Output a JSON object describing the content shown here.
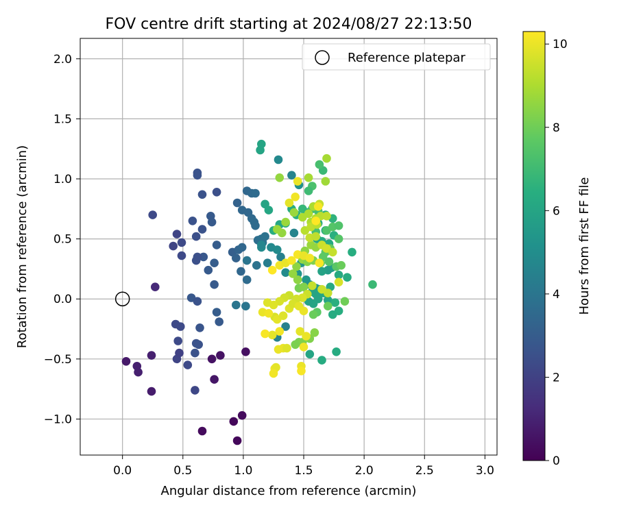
{
  "chart_data": {
    "type": "scatter",
    "title": "FOV centre drift starting at 2024/08/27 22:13:50",
    "xlabel": "Angular distance from reference (arcmin)",
    "ylabel": "Rotation from reference (arcmin)",
    "xlim": [
      -0.35,
      3.1
    ],
    "ylim": [
      -1.3,
      2.17
    ],
    "xticks": [
      0.0,
      0.5,
      1.0,
      1.5,
      2.0,
      2.5,
      3.0
    ],
    "yticks": [
      -1.0,
      -0.5,
      0.0,
      0.5,
      1.0,
      1.5,
      2.0
    ],
    "grid": true,
    "legend": {
      "placement": "top-right",
      "entries": [
        "Reference platepar"
      ]
    },
    "reference_point": {
      "label": "Reference platepar",
      "x": 0.0,
      "y": 0.0
    },
    "colorbar": {
      "label": "Hours from first FF file",
      "colormap": "viridis",
      "range": [
        0,
        10.3
      ],
      "ticks": [
        0,
        2,
        4,
        6,
        8,
        10
      ]
    },
    "points": [
      [
        0.66,
        -1.1,
        0.3
      ],
      [
        0.95,
        -1.18,
        0.2
      ],
      [
        0.92,
        -1.02,
        0.2
      ],
      [
        0.99,
        -0.97,
        0.3
      ],
      [
        0.24,
        -0.77,
        0.8
      ],
      [
        0.76,
        -0.67,
        0.6
      ],
      [
        0.03,
        -0.52,
        0.7
      ],
      [
        0.13,
        -0.61,
        0.9
      ],
      [
        0.12,
        -0.56,
        0.9
      ],
      [
        0.24,
        -0.47,
        0.9
      ],
      [
        0.74,
        -0.5,
        0.5
      ],
      [
        0.81,
        -0.47,
        0.5
      ],
      [
        1.02,
        -0.44,
        0.4
      ],
      [
        0.27,
        0.1,
        1.2
      ],
      [
        0.25,
        0.7,
        2.3
      ],
      [
        0.6,
        -0.76,
        2.2
      ],
      [
        0.54,
        -0.55,
        2.3
      ],
      [
        0.45,
        -0.5,
        2.1
      ],
      [
        0.47,
        -0.45,
        2.0
      ],
      [
        0.6,
        -0.45,
        2.6
      ],
      [
        0.61,
        -0.37,
        2.6
      ],
      [
        0.63,
        -0.38,
        2.6
      ],
      [
        0.46,
        -0.35,
        2.3
      ],
      [
        0.44,
        -0.21,
        2.3
      ],
      [
        0.48,
        -0.23,
        2.3
      ],
      [
        0.64,
        -0.24,
        2.7
      ],
      [
        0.57,
        0.01,
        2.8
      ],
      [
        0.62,
        -0.02,
        2.6
      ],
      [
        0.8,
        -0.19,
        2.9
      ],
      [
        0.78,
        -0.11,
        3.0
      ],
      [
        0.76,
        0.12,
        2.9
      ],
      [
        0.71,
        0.24,
        2.9
      ],
      [
        0.67,
        0.35,
        2.8
      ],
      [
        0.61,
        0.32,
        2.5
      ],
      [
        0.62,
        0.35,
        2.5
      ],
      [
        0.76,
        0.3,
        3.0
      ],
      [
        0.78,
        0.45,
        3.0
      ],
      [
        0.42,
        0.44,
        2.1
      ],
      [
        0.49,
        0.47,
        2.3
      ],
      [
        0.45,
        0.54,
        2.1
      ],
      [
        0.49,
        0.36,
        2.3
      ],
      [
        0.61,
        0.52,
        2.5
      ],
      [
        0.66,
        0.58,
        2.6
      ],
      [
        0.58,
        0.65,
        2.6
      ],
      [
        0.73,
        0.69,
        2.9
      ],
      [
        0.74,
        0.64,
        2.9
      ],
      [
        0.66,
        0.87,
        2.6
      ],
      [
        0.78,
        0.89,
        2.5
      ],
      [
        0.62,
        1.03,
        2.6
      ],
      [
        0.62,
        1.05,
        2.6
      ],
      [
        0.91,
        0.39,
        3.1
      ],
      [
        0.94,
        0.34,
        3.2
      ],
      [
        0.96,
        0.41,
        3.3
      ],
      [
        0.99,
        0.43,
        3.4
      ],
      [
        0.98,
        0.23,
        3.4
      ],
      [
        1.03,
        0.16,
        3.6
      ],
      [
        0.95,
        0.8,
        3.2
      ],
      [
        0.99,
        0.74,
        3.4
      ],
      [
        1.04,
        0.72,
        3.4
      ],
      [
        1.07,
        0.67,
        3.5
      ],
      [
        1.03,
        0.9,
        3.4
      ],
      [
        1.07,
        0.88,
        3.5
      ],
      [
        1.1,
        0.88,
        3.6
      ],
      [
        1.09,
        0.64,
        3.6
      ],
      [
        1.1,
        0.61,
        3.6
      ],
      [
        1.12,
        0.49,
        3.7
      ],
      [
        1.15,
        0.5,
        3.8
      ],
      [
        1.18,
        0.52,
        3.9
      ],
      [
        1.11,
        0.28,
        3.9
      ],
      [
        1.16,
        0.47,
        3.9
      ],
      [
        1.02,
        -0.06,
        4.0
      ],
      [
        0.94,
        -0.05,
        4.0
      ],
      [
        1.03,
        0.32,
        4.0
      ],
      [
        1.2,
        0.3,
        4.3
      ],
      [
        1.28,
        -0.32,
        4.5
      ],
      [
        1.31,
        0.35,
        4.4
      ],
      [
        1.35,
        -0.23,
        4.5
      ],
      [
        1.42,
        0.55,
        4.6
      ],
      [
        1.4,
        1.03,
        4.6
      ],
      [
        1.29,
        1.16,
        4.8
      ],
      [
        1.23,
        0.43,
        4.8
      ],
      [
        1.35,
        0.22,
        4.9
      ],
      [
        1.28,
        0.41,
        4.9
      ],
      [
        1.15,
        0.43,
        4.9
      ],
      [
        1.15,
        0.45,
        4.7
      ],
      [
        1.46,
        0.95,
        5.1
      ],
      [
        1.48,
        0.3,
        5.3
      ],
      [
        1.45,
        0.21,
        5.3
      ],
      [
        1.52,
        0.16,
        5.4
      ],
      [
        1.55,
        0.12,
        5.3
      ],
      [
        1.6,
        0.09,
        5.5
      ],
      [
        1.63,
        0.08,
        5.6
      ],
      [
        1.66,
        0.05,
        5.6
      ],
      [
        1.7,
        0.24,
        5.7
      ],
      [
        1.73,
        0.26,
        5.7
      ],
      [
        1.55,
        -0.46,
        6.0
      ],
      [
        1.65,
        -0.51,
        6.3
      ],
      [
        1.77,
        -0.44,
        6.3
      ],
      [
        1.79,
        -0.1,
        6.4
      ],
      [
        1.7,
        -0.01,
        6.0
      ],
      [
        1.74,
        -0.13,
        6.3
      ],
      [
        1.76,
        -0.03,
        6.5
      ],
      [
        1.67,
        0.05,
        6.1
      ],
      [
        1.72,
        0.1,
        6.2
      ],
      [
        1.6,
        0.04,
        6.0
      ],
      [
        1.62,
        0.0,
        6.0
      ],
      [
        1.58,
        -0.04,
        6.0
      ],
      [
        1.54,
        -0.02,
        5.9
      ],
      [
        1.57,
        0.06,
        6.0
      ],
      [
        1.65,
        0.23,
        5.9
      ],
      [
        1.79,
        0.2,
        6.2
      ],
      [
        1.86,
        0.18,
        6.3
      ],
      [
        1.9,
        0.39,
        6.4
      ],
      [
        2.07,
        0.12,
        6.9
      ],
      [
        1.61,
        0.5,
        6.1
      ],
      [
        1.65,
        0.48,
        6.2
      ],
      [
        1.71,
        0.46,
        6.2
      ],
      [
        1.75,
        0.53,
        6.5
      ],
      [
        1.68,
        0.57,
        6.3
      ],
      [
        1.62,
        0.63,
        6.2
      ],
      [
        1.68,
        0.7,
        6.5
      ],
      [
        1.74,
        0.67,
        6.6
      ],
      [
        1.18,
        0.79,
        6.0
      ],
      [
        1.21,
        0.74,
        6.1
      ],
      [
        1.14,
        1.24,
        6.0
      ],
      [
        1.15,
        1.29,
        6.0
      ],
      [
        1.25,
        0.57,
        6.4
      ],
      [
        1.3,
        0.62,
        6.1
      ],
      [
        1.35,
        0.63,
        6.2
      ],
      [
        1.4,
        0.75,
        6.3
      ],
      [
        1.44,
        0.7,
        6.5
      ],
      [
        1.49,
        0.75,
        6.8
      ],
      [
        1.53,
        0.72,
        6.7
      ],
      [
        1.57,
        0.75,
        7.0
      ],
      [
        1.62,
        0.73,
        7.2
      ],
      [
        1.66,
        1.07,
        6.9
      ],
      [
        1.63,
        1.12,
        7.2
      ],
      [
        1.57,
        0.94,
        7.3
      ],
      [
        1.54,
        0.9,
        7.0
      ],
      [
        1.6,
        0.56,
        7.2
      ],
      [
        1.69,
        0.57,
        7.4
      ],
      [
        1.74,
        0.6,
        7.5
      ],
      [
        1.79,
        0.61,
        7.4
      ],
      [
        1.79,
        0.5,
        7.5
      ],
      [
        1.72,
        0.42,
        7.8
      ],
      [
        1.68,
        0.39,
        7.6
      ],
      [
        1.66,
        0.35,
        7.7
      ],
      [
        1.64,
        0.3,
        7.8
      ],
      [
        1.71,
        0.31,
        7.5
      ],
      [
        1.77,
        0.27,
        7.6
      ],
      [
        1.81,
        0.28,
        7.9
      ],
      [
        1.84,
        -0.02,
        8.0
      ],
      [
        1.7,
        -0.06,
        7.9
      ],
      [
        1.61,
        -0.11,
        7.7
      ],
      [
        1.58,
        -0.13,
        7.9
      ],
      [
        1.46,
        -0.36,
        8.2
      ],
      [
        1.49,
        -0.36,
        8.3
      ],
      [
        1.43,
        -0.38,
        8.2
      ],
      [
        1.55,
        -0.33,
        8.3
      ],
      [
        1.59,
        -0.28,
        8.4
      ],
      [
        1.46,
        0.09,
        8.1
      ],
      [
        1.5,
        0.1,
        8.3
      ],
      [
        1.45,
        0.16,
        8.5
      ],
      [
        1.41,
        0.21,
        8.6
      ],
      [
        1.44,
        0.27,
        8.5
      ],
      [
        1.49,
        0.33,
        8.6
      ],
      [
        1.53,
        0.31,
        8.4
      ],
      [
        1.58,
        0.32,
        8.3
      ],
      [
        1.51,
        0.4,
        8.5
      ],
      [
        1.56,
        0.45,
        8.7
      ],
      [
        1.6,
        0.43,
        8.6
      ],
      [
        1.42,
        0.72,
        8.7
      ],
      [
        1.35,
        0.64,
        8.7
      ],
      [
        1.32,
        0.55,
        8.6
      ],
      [
        1.28,
        0.58,
        8.7
      ],
      [
        1.3,
        1.01,
        8.6
      ],
      [
        1.54,
        1.01,
        8.9
      ],
      [
        1.69,
        1.17,
        8.9
      ],
      [
        1.68,
        0.98,
        8.8
      ],
      [
        1.56,
        0.64,
        9.0
      ],
      [
        1.6,
        0.67,
        9.1
      ],
      [
        1.64,
        0.69,
        9.2
      ],
      [
        1.69,
        0.69,
        9.3
      ],
      [
        1.49,
        0.68,
        9.0
      ],
      [
        1.54,
        0.71,
        9.0
      ],
      [
        1.58,
        0.77,
        9.0
      ],
      [
        1.63,
        0.79,
        9.4
      ],
      [
        1.51,
        0.57,
        9.2
      ],
      [
        1.56,
        0.6,
        9.3
      ],
      [
        1.61,
        0.62,
        9.2
      ],
      [
        1.55,
        0.51,
        9.4
      ],
      [
        1.6,
        0.52,
        9.3
      ],
      [
        1.65,
        0.45,
        9.5
      ],
      [
        1.69,
        0.42,
        9.6
      ],
      [
        1.74,
        0.39,
        9.4
      ],
      [
        1.79,
        0.14,
        9.7
      ],
      [
        1.7,
        0.05,
        9.4
      ],
      [
        1.65,
        0.08,
        9.5
      ],
      [
        1.57,
        0.11,
        9.4
      ],
      [
        1.53,
        0.04,
        9.5
      ],
      [
        1.49,
        0.01,
        9.7
      ],
      [
        1.44,
        0.0,
        9.6
      ],
      [
        1.38,
        0.03,
        9.5
      ],
      [
        1.34,
        0.01,
        9.6
      ],
      [
        1.3,
        -0.02,
        9.7
      ],
      [
        1.25,
        -0.05,
        9.8
      ],
      [
        1.26,
        -0.15,
        9.7
      ],
      [
        1.28,
        -0.17,
        9.9
      ],
      [
        1.33,
        -0.14,
        9.8
      ],
      [
        1.38,
        -0.08,
        9.8
      ],
      [
        1.41,
        -0.04,
        9.7
      ],
      [
        1.46,
        -0.06,
        9.9
      ],
      [
        1.5,
        -0.1,
        10.0
      ],
      [
        1.47,
        -0.27,
        9.9
      ],
      [
        1.52,
        -0.31,
        10.0
      ],
      [
        1.5,
        -0.4,
        10.1
      ],
      [
        1.33,
        -0.41,
        10.0
      ],
      [
        1.36,
        -0.41,
        9.8
      ],
      [
        1.3,
        -0.27,
        10.1
      ],
      [
        1.24,
        -0.3,
        9.9
      ],
      [
        1.29,
        -0.42,
        10.0
      ],
      [
        1.26,
        -0.58,
        10.1
      ],
      [
        1.27,
        -0.57,
        9.9
      ],
      [
        1.25,
        -0.62,
        10.1
      ],
      [
        1.48,
        -0.56,
        10.0
      ],
      [
        1.48,
        -0.6,
        10.2
      ],
      [
        1.3,
        0.28,
        10.1
      ],
      [
        1.35,
        0.3,
        10.0
      ],
      [
        1.4,
        0.32,
        10.2
      ],
      [
        1.45,
        0.37,
        10.2
      ],
      [
        1.5,
        0.36,
        10.0
      ],
      [
        1.55,
        0.34,
        10.1
      ],
      [
        1.63,
        0.3,
        10.2
      ],
      [
        1.38,
        0.8,
        9.9
      ],
      [
        1.43,
        0.85,
        10.1
      ],
      [
        1.45,
        0.98,
        10.0
      ],
      [
        1.6,
        0.65,
        10.3
      ],
      [
        1.62,
        0.77,
        10.2
      ],
      [
        1.24,
        0.24,
        10.3
      ],
      [
        1.2,
        -0.03,
        9.8
      ],
      [
        1.18,
        -0.29,
        10.2
      ],
      [
        1.16,
        -0.11,
        10.0
      ],
      [
        1.21,
        -0.12,
        10.1
      ]
    ]
  }
}
